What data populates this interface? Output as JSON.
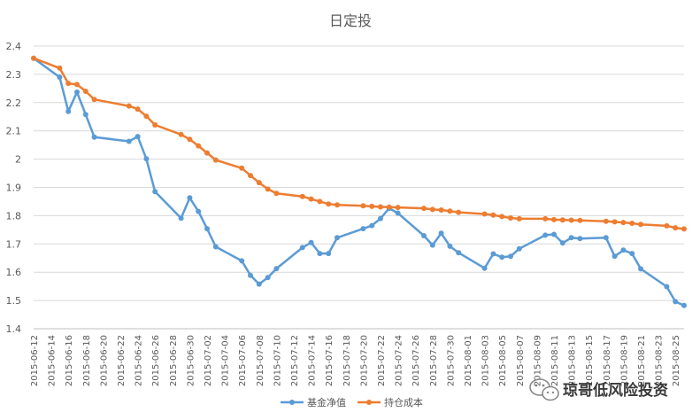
{
  "chart_data": {
    "type": "line",
    "title": "日定投",
    "xlabel": "",
    "ylabel": "",
    "ylim": [
      1.4,
      2.4
    ],
    "y_ticks": [
      "1.4",
      "1.5",
      "1.6",
      "1.7",
      "1.8",
      "1.9",
      "2",
      "2.1",
      "2.2",
      "2.3",
      "2.4"
    ],
    "x_ticks": [
      "2015-06-12",
      "2015-06-14",
      "2015-06-16",
      "2015-06-18",
      "2015-06-20",
      "2015-06-22",
      "2015-06-24",
      "2015-06-26",
      "2015-06-28",
      "2015-06-30",
      "2015-07-02",
      "2015-07-04",
      "2015-07-06",
      "2015-07-08",
      "2015-07-10",
      "2015-07-12",
      "2015-07-14",
      "2015-07-16",
      "2015-07-18",
      "2015-07-20",
      "2015-07-22",
      "2015-07-24",
      "2015-07-26",
      "2015-07-28",
      "2015-07-30",
      "2015-08-01",
      "2015-08-03",
      "2015-08-05",
      "2015-08-07",
      "2015-08-09",
      "2015-08-11",
      "2015-08-13",
      "2015-08-15",
      "2015-08-17",
      "2015-08-19",
      "2015-08-21",
      "2015-08-23",
      "2015-08-25"
    ],
    "x_range": [
      "2015-06-12",
      "2015-08-26"
    ],
    "legend_position": "bottom",
    "grid": "horizontal",
    "series": [
      {
        "name": "基金净值",
        "color": "#5b9bd5",
        "points": [
          [
            "2015-06-12",
            2.357
          ],
          [
            "2015-06-15",
            2.29
          ],
          [
            "2015-06-16",
            2.169
          ],
          [
            "2015-06-17",
            2.237
          ],
          [
            "2015-06-18",
            2.158
          ],
          [
            "2015-06-19",
            2.078
          ],
          [
            "2015-06-23",
            2.063
          ],
          [
            "2015-06-24",
            2.08
          ],
          [
            "2015-06-25",
            2.001
          ],
          [
            "2015-06-26",
            1.885
          ],
          [
            "2015-06-29",
            1.791
          ],
          [
            "2015-06-30",
            1.863
          ],
          [
            "2015-07-01",
            1.815
          ],
          [
            "2015-07-02",
            1.754
          ],
          [
            "2015-07-03",
            1.69
          ],
          [
            "2015-07-06",
            1.64
          ],
          [
            "2015-07-07",
            1.589
          ],
          [
            "2015-07-08",
            1.558
          ],
          [
            "2015-07-09",
            1.581
          ],
          [
            "2015-07-10",
            1.613
          ],
          [
            "2015-07-13",
            1.687
          ],
          [
            "2015-07-14",
            1.705
          ],
          [
            "2015-07-15",
            1.666
          ],
          [
            "2015-07-16",
            1.666
          ],
          [
            "2015-07-17",
            1.722
          ],
          [
            "2015-07-20",
            1.754
          ],
          [
            "2015-07-21",
            1.765
          ],
          [
            "2015-07-22",
            1.79
          ],
          [
            "2015-07-23",
            1.826
          ],
          [
            "2015-07-24",
            1.809
          ],
          [
            "2015-07-27",
            1.729
          ],
          [
            "2015-07-28",
            1.696
          ],
          [
            "2015-07-29",
            1.738
          ],
          [
            "2015-07-30",
            1.692
          ],
          [
            "2015-07-31",
            1.669
          ],
          [
            "2015-08-03",
            1.614
          ],
          [
            "2015-08-04",
            1.665
          ],
          [
            "2015-08-05",
            1.653
          ],
          [
            "2015-08-06",
            1.656
          ],
          [
            "2015-08-07",
            1.683
          ],
          [
            "2015-08-10",
            1.731
          ],
          [
            "2015-08-11",
            1.734
          ],
          [
            "2015-08-12",
            1.703
          ],
          [
            "2015-08-13",
            1.722
          ],
          [
            "2015-08-14",
            1.719
          ],
          [
            "2015-08-17",
            1.722
          ],
          [
            "2015-08-18",
            1.656
          ],
          [
            "2015-08-19",
            1.678
          ],
          [
            "2015-08-20",
            1.666
          ],
          [
            "2015-08-21",
            1.612
          ],
          [
            "2015-08-24",
            1.549
          ],
          [
            "2015-08-25",
            1.496
          ],
          [
            "2015-08-26",
            1.482
          ]
        ]
      },
      {
        "name": "持仓成本",
        "color": "#ed7d31",
        "points": [
          [
            "2015-06-12",
            2.357
          ],
          [
            "2015-06-15",
            2.322
          ],
          [
            "2015-06-16",
            2.268
          ],
          [
            "2015-06-17",
            2.264
          ],
          [
            "2015-06-18",
            2.24
          ],
          [
            "2015-06-19",
            2.211
          ],
          [
            "2015-06-23",
            2.188
          ],
          [
            "2015-06-24",
            2.177
          ],
          [
            "2015-06-25",
            2.152
          ],
          [
            "2015-06-26",
            2.121
          ],
          [
            "2015-06-29",
            2.087
          ],
          [
            "2015-06-30",
            2.07
          ],
          [
            "2015-07-01",
            2.047
          ],
          [
            "2015-07-02",
            2.022
          ],
          [
            "2015-07-03",
            1.997
          ],
          [
            "2015-07-06",
            1.968
          ],
          [
            "2015-07-07",
            1.942
          ],
          [
            "2015-07-08",
            1.917
          ],
          [
            "2015-07-09",
            1.894
          ],
          [
            "2015-07-10",
            1.879
          ],
          [
            "2015-07-13",
            1.868
          ],
          [
            "2015-07-14",
            1.859
          ],
          [
            "2015-07-15",
            1.85
          ],
          [
            "2015-07-16",
            1.841
          ],
          [
            "2015-07-17",
            1.838
          ],
          [
            "2015-07-20",
            1.835
          ],
          [
            "2015-07-21",
            1.833
          ],
          [
            "2015-07-22",
            1.831
          ],
          [
            "2015-07-23",
            1.83
          ],
          [
            "2015-07-24",
            1.829
          ],
          [
            "2015-07-27",
            1.826
          ],
          [
            "2015-07-28",
            1.822
          ],
          [
            "2015-07-29",
            1.82
          ],
          [
            "2015-07-30",
            1.816
          ],
          [
            "2015-07-31",
            1.812
          ],
          [
            "2015-08-03",
            1.806
          ],
          [
            "2015-08-04",
            1.802
          ],
          [
            "2015-08-05",
            1.797
          ],
          [
            "2015-08-06",
            1.792
          ],
          [
            "2015-08-07",
            1.789
          ],
          [
            "2015-08-10",
            1.789
          ],
          [
            "2015-08-11",
            1.786
          ],
          [
            "2015-08-12",
            1.785
          ],
          [
            "2015-08-13",
            1.784
          ],
          [
            "2015-08-14",
            1.783
          ],
          [
            "2015-08-17",
            1.78
          ],
          [
            "2015-08-18",
            1.778
          ],
          [
            "2015-08-19",
            1.776
          ],
          [
            "2015-08-20",
            1.773
          ],
          [
            "2015-08-21",
            1.769
          ],
          [
            "2015-08-24",
            1.764
          ],
          [
            "2015-08-25",
            1.757
          ],
          [
            "2015-08-26",
            1.753
          ]
        ]
      }
    ]
  },
  "watermark": {
    "text": "琼哥低风险投资",
    "icon": "wechat-icon"
  }
}
